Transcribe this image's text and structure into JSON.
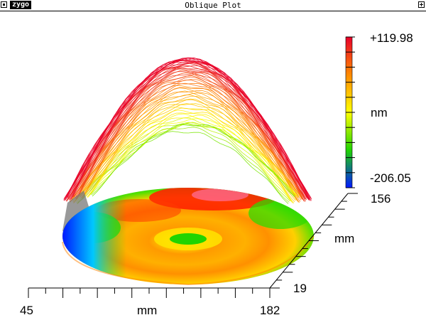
{
  "window": {
    "title": "Oblique Plot",
    "logo": "zygo"
  },
  "colorbar": {
    "max_label": "+119.98",
    "min_label": "-206.05",
    "unit": "nm",
    "colors": [
      "#e8002a",
      "#ff8a00",
      "#ffff00",
      "#20d400",
      "#0018ff"
    ]
  },
  "axes": {
    "x_min": "45",
    "x_max": "182",
    "x_unit": "mm",
    "y_min": "19",
    "y_max": "156",
    "y_unit": "mm"
  }
}
